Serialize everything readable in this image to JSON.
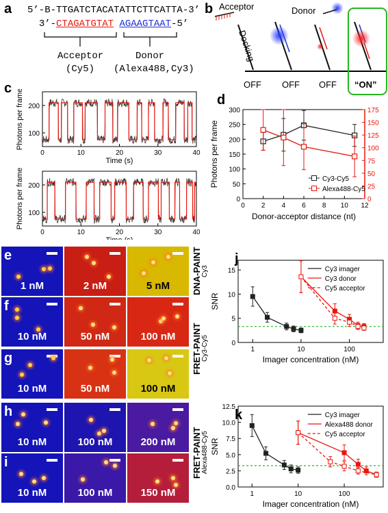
{
  "panels": {
    "a": "a",
    "b": "b",
    "c": "c",
    "d": "d",
    "e": "e",
    "f": "f",
    "g": "g",
    "h": "h",
    "i": "i",
    "j": "j",
    "k": "k"
  },
  "panel_a": {
    "top_strand": "5’-B-TTGATCTACATATTCTTCATTA-3’",
    "bottom_prefix": "3’-",
    "acceptor_seq": "CTAGATGTAT",
    "donor_seq": "AGAAGTAAT",
    "bottom_suffix": "-5’",
    "acceptor_label": "Acceptor",
    "acceptor_dye": "(Cy5)",
    "donor_label": "Donor",
    "donor_dye": "(Alexa488,Cy3)"
  },
  "panel_b": {
    "acceptor_label": "Acceptor",
    "donor_label": "Donor",
    "docking_label": "Docking",
    "states": [
      "OFF",
      "OFF",
      "OFF",
      "“ON”"
    ]
  },
  "panel_c": {
    "ylabel": "Photons per frame",
    "xlabel": "Time (s)",
    "yticks": [
      "100",
      "200"
    ],
    "xticks": [
      "0",
      "10",
      "20",
      "30",
      "40"
    ]
  },
  "colors": {
    "red": "#e8160c",
    "blue": "#1f2fd6",
    "green": "#22b822",
    "dkgray": "#222222"
  },
  "chart_data": [
    {
      "id": "d",
      "type": "line",
      "xlabel": "Donor-acceptor distance (nt)",
      "ylabel": "Photons per frame",
      "xlim": [
        0,
        12
      ],
      "ylim_left": [
        0,
        300
      ],
      "ylim_right": [
        0,
        175
      ],
      "xticks": [
        0,
        2,
        4,
        6,
        8,
        10,
        12
      ],
      "yticks_left": [
        0,
        50,
        100,
        150,
        200,
        250,
        300
      ],
      "yticks_right": [
        0,
        25,
        50,
        75,
        100,
        125,
        150,
        175
      ],
      "legend_position": "bottom-right",
      "series": [
        {
          "name": "Cy3-Cy5",
          "axis": "left",
          "x": [
            2,
            4,
            6,
            11
          ],
          "y": [
            193,
            215,
            247,
            213
          ],
          "err": [
            30,
            55,
            50,
            37
          ],
          "color": "#222222"
        },
        {
          "name": "Alexa488-Cy5",
          "axis": "right",
          "x": [
            2,
            4,
            6,
            11
          ],
          "y": [
            135,
            120,
            102,
            83
          ],
          "err": [
            40,
            55,
            45,
            40
          ],
          "color": "#e8160c"
        }
      ]
    },
    {
      "id": "j",
      "type": "line",
      "xlabel": "Imager concentration (nM)",
      "ylabel": "SNR",
      "xscale": "log",
      "xlim": [
        0.5,
        500
      ],
      "ylim": [
        0,
        17
      ],
      "yticks": [
        0,
        5,
        10,
        15
      ],
      "xticks": [
        1,
        10,
        100
      ],
      "xtick_labels": [
        "1",
        "10",
        "100"
      ],
      "threshold": 3.3,
      "legend_position": "top-right",
      "series": [
        {
          "name": "Cy3 imager",
          "x": [
            1,
            2,
            5,
            7,
            10
          ],
          "y": [
            9.5,
            5.2,
            3.3,
            2.8,
            2.5
          ],
          "err": [
            2.0,
            1.0,
            0.7,
            0.6,
            0.5
          ],
          "color": "#222222",
          "style": "solid",
          "marker": "filled"
        },
        {
          "name": "Cy3 donor",
          "x": [
            10,
            50,
            100,
            150,
            200
          ],
          "y": [
            13.6,
            6.5,
            4.8,
            3.5,
            3.3
          ],
          "err": [
            3.3,
            1.5,
            1.0,
            0.7,
            0.6
          ],
          "color": "#e8160c",
          "style": "solid",
          "marker": "filled"
        },
        {
          "name": "Cy5 acceptor",
          "x": [
            10,
            50,
            100,
            150,
            200
          ],
          "y": [
            13.6,
            5.0,
            4.2,
            3.3,
            3.0
          ],
          "err": [
            3.3,
            1.2,
            0.9,
            0.6,
            0.5
          ],
          "color": "#e8160c",
          "style": "dashed",
          "marker": "open"
        }
      ]
    },
    {
      "id": "k",
      "type": "line",
      "xlabel": "Imager concentration (nM)",
      "ylabel": "SNR",
      "xscale": "log",
      "xlim": [
        0.5,
        700
      ],
      "ylim": [
        0,
        12.5
      ],
      "yticks": [
        0.0,
        2.5,
        5.0,
        7.5,
        10.0,
        12.5
      ],
      "ytick_labels": [
        "0.0",
        "2.5",
        "5.0",
        "7.5",
        "10.0",
        "12.5"
      ],
      "xticks": [
        1,
        10,
        100
      ],
      "xtick_labels": [
        "1",
        "10",
        "100"
      ],
      "threshold": 3.3,
      "legend_position": "top-right",
      "series": [
        {
          "name": "Cy3 imager",
          "x": [
            1,
            2,
            5,
            7,
            10
          ],
          "y": [
            9.5,
            5.2,
            3.4,
            2.8,
            2.6
          ],
          "err": [
            1.7,
            1.0,
            0.7,
            0.6,
            0.5
          ],
          "color": "#222222",
          "style": "solid",
          "marker": "filled"
        },
        {
          "name": "Alexa488 donor",
          "x": [
            10,
            100,
            200,
            300,
            500
          ],
          "y": [
            8.4,
            5.3,
            3.5,
            2.5,
            1.9
          ],
          "err": [
            1.8,
            1.2,
            0.8,
            0.6,
            0.4
          ],
          "color": "#e8160c",
          "style": "solid",
          "marker": "filled"
        },
        {
          "name": "Cy5 acceptor",
          "x": [
            10,
            50,
            100,
            200,
            500
          ],
          "y": [
            8.4,
            3.9,
            3.2,
            2.5,
            1.9
          ],
          "err": [
            1.8,
            0.8,
            0.7,
            0.5,
            0.4
          ],
          "color": "#e8160c",
          "style": "dashed",
          "marker": "open"
        }
      ]
    }
  ],
  "image_grid": {
    "rows": [
      {
        "panel": "e",
        "tiles": [
          "1 nM",
          "2 nM",
          "5 nM"
        ],
        "colors": [
          "#1414b8",
          "#c81e14",
          "#d8b800"
        ]
      },
      {
        "panel": "f",
        "tiles": [
          "10 nM",
          "50 nM",
          "100 nM"
        ],
        "colors": [
          "#1414b8",
          "#d02814",
          "#d82814"
        ]
      },
      {
        "panel": "g",
        "tiles": [
          "10 nM",
          "50 nM",
          "100 nM"
        ],
        "colors": [
          "#1414b8",
          "#d83214",
          "#d8c814"
        ]
      },
      {
        "panel": "h",
        "tiles": [
          "10 nM",
          "100 nM",
          "200 nM"
        ],
        "colors": [
          "#1414b8",
          "#1e14b0",
          "#4a1aa0"
        ]
      },
      {
        "panel": "i",
        "tiles": [
          "10 nM",
          "100 nM",
          "150 nM"
        ],
        "colors": [
          "#1414b8",
          "#3a18a8",
          "#b41e3a"
        ]
      }
    ],
    "row_labels": [
      {
        "main": "DNA-PAINT",
        "sub": "Cy3"
      },
      {
        "main": "FRET-PAINT",
        "sub": "Cy3-Cy5"
      },
      {
        "main": "FRET-PAINT",
        "sub": "Alexa488-Cy5"
      }
    ]
  }
}
